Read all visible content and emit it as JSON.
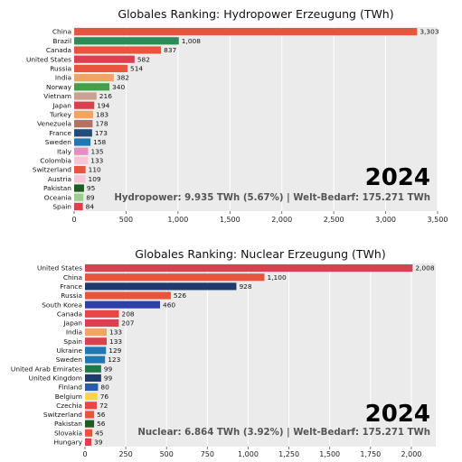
{
  "chart_data": [
    {
      "type": "bar",
      "orientation": "horizontal",
      "title": "Globales Ranking: Hydropower Erzeugung (TWh)",
      "year": "2024",
      "summary": "Hydropower: 9.935 TWh (5.67%) | Welt-Bedarf: 175.271 TWh",
      "xlim": [
        0,
        3500
      ],
      "xticks": [
        0,
        500,
        1000,
        1500,
        2000,
        2500,
        3000,
        3500
      ],
      "xtick_labels": [
        "0",
        "500",
        "1,000",
        "1,500",
        "2,000",
        "2,500",
        "3,000",
        "3,500"
      ],
      "grid": true,
      "categories": [
        "China",
        "Brazil",
        "Canada",
        "United States",
        "Russia",
        "India",
        "Norway",
        "Vietnam",
        "Japan",
        "Turkey",
        "Venezuela",
        "France",
        "Sweden",
        "Italy",
        "Colombia",
        "Switzerland",
        "Austria",
        "Pakistan",
        "Oceania",
        "Spain"
      ],
      "values": [
        3303,
        1008,
        837,
        582,
        514,
        382,
        340,
        216,
        194,
        183,
        178,
        173,
        158,
        135,
        133,
        110,
        109,
        95,
        89,
        84
      ],
      "value_labels": [
        "3,303",
        "1,008",
        "837",
        "582",
        "514",
        "382",
        "340",
        "216",
        "194",
        "183",
        "178",
        "173",
        "158",
        "135",
        "133",
        "110",
        "109",
        "95",
        "89",
        "84"
      ],
      "colors": [
        "#e8553d",
        "#2e8b57",
        "#e8553d",
        "#d94150",
        "#e8553d",
        "#f4a460",
        "#43a047",
        "#c9a291",
        "#d94150",
        "#f4a460",
        "#b5725f",
        "#1f4e79",
        "#1f78b4",
        "#e58fc0",
        "#f6c6d8",
        "#e8553d",
        "#f6c6d8",
        "#1b5e20",
        "#9ccf8f",
        "#d94150"
      ]
    },
    {
      "type": "bar",
      "orientation": "horizontal",
      "title": "Globales Ranking: Nuclear Erzeugung (TWh)",
      "year": "2024",
      "summary": "Nuclear: 6.864 TWh (3.92%) | Welt-Bedarf: 175.271 TWh",
      "xlim": [
        0,
        2150
      ],
      "xticks": [
        0,
        250,
        500,
        750,
        1000,
        1250,
        1500,
        1750,
        2000
      ],
      "xtick_labels": [
        "0",
        "250",
        "500",
        "750",
        "1,000",
        "1,250",
        "1,500",
        "1,750",
        "2,000"
      ],
      "grid": true,
      "categories": [
        "United States",
        "China",
        "France",
        "Russia",
        "South Korea",
        "Canada",
        "Japan",
        "India",
        "Spain",
        "Ukraine",
        "Sweden",
        "United Arab Emirates",
        "United Kingdom",
        "Finland",
        "Belgium",
        "Czechia",
        "Switzerland",
        "Pakistan",
        "Slovakia",
        "Hungary"
      ],
      "values": [
        2008,
        1100,
        928,
        526,
        460,
        208,
        207,
        133,
        133,
        129,
        123,
        99,
        99,
        80,
        76,
        72,
        56,
        56,
        45,
        39
      ],
      "value_labels": [
        "2,008",
        "1,100",
        "928",
        "526",
        "460",
        "208",
        "207",
        "133",
        "133",
        "129",
        "123",
        "99",
        "99",
        "80",
        "76",
        "72",
        "56",
        "56",
        "45",
        "39"
      ],
      "colors": [
        "#d94150",
        "#e8553d",
        "#1f3a6e",
        "#e8553d",
        "#2d3fa8",
        "#e84545",
        "#d94150",
        "#f4a460",
        "#d94150",
        "#1f78b4",
        "#1f78b4",
        "#1b7a45",
        "#1f3a6e",
        "#2b5cab",
        "#f6d64a",
        "#e84545",
        "#e8553d",
        "#1b5e20",
        "#e8553d",
        "#d94150"
      ]
    }
  ]
}
